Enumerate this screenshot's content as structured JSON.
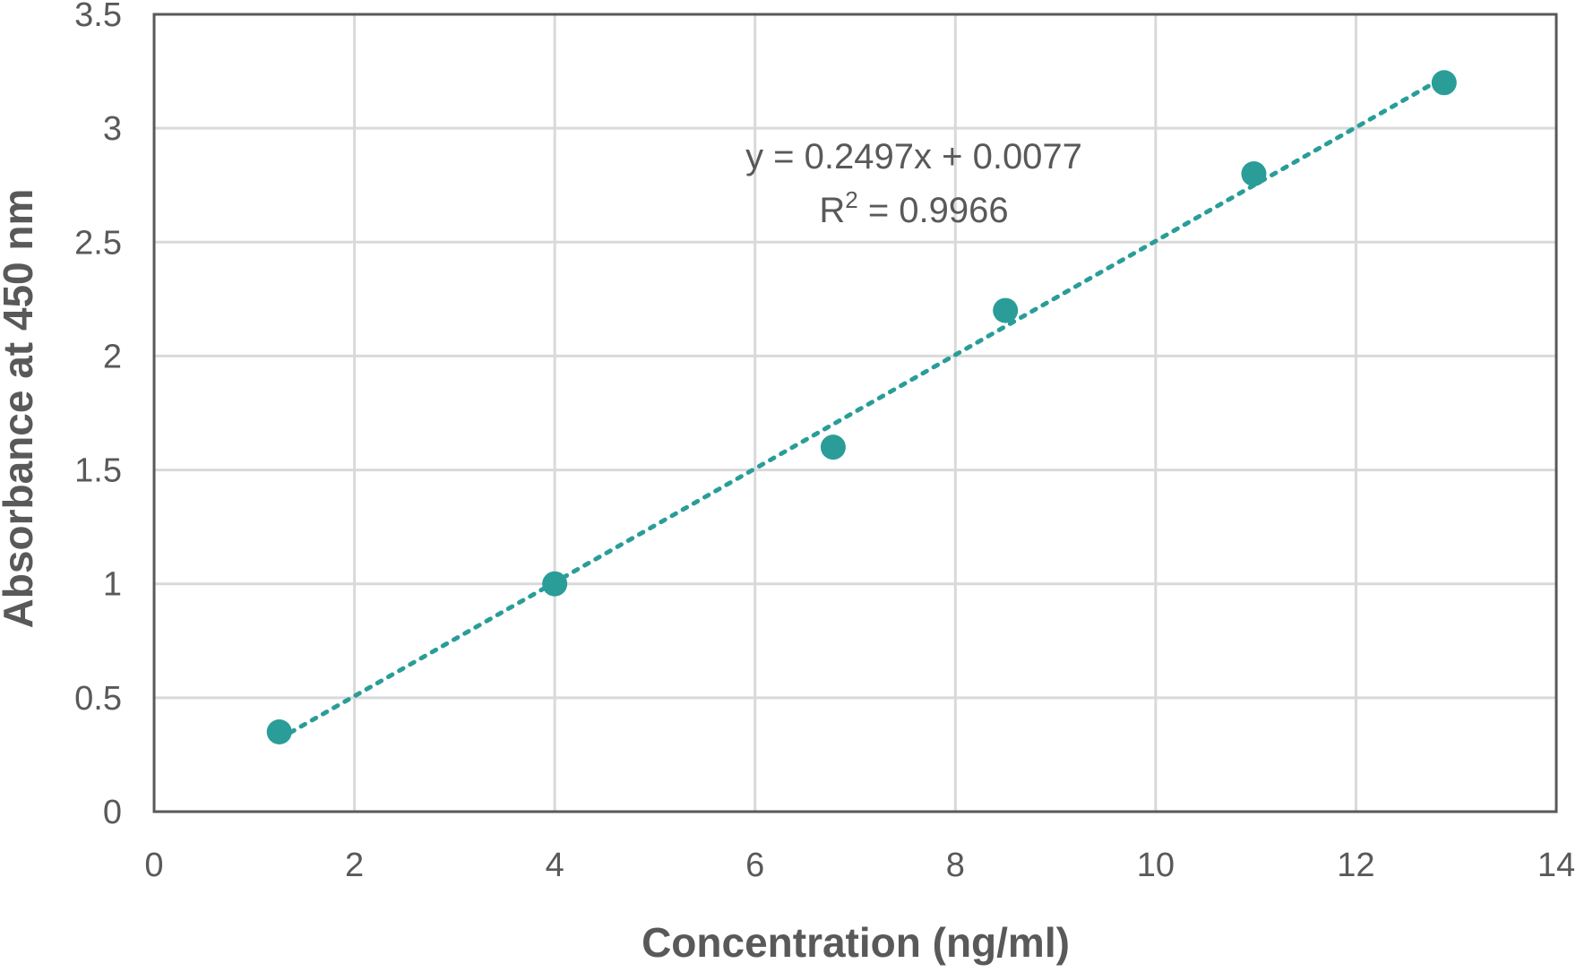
{
  "chart_data": {
    "type": "scatter",
    "title": "",
    "xlabel": "Concentration (ng/ml)",
    "ylabel": "Absorbance at 450 nm",
    "xlim": [
      0,
      14
    ],
    "ylim": [
      0,
      3.5
    ],
    "xticks": [
      0,
      2,
      4,
      6,
      8,
      10,
      12,
      14
    ],
    "yticks": [
      0,
      0.5,
      1,
      1.5,
      2,
      2.5,
      3,
      3.5
    ],
    "xtick_labels": [
      "0",
      "2",
      "4",
      "6",
      "8",
      "10",
      "12",
      "14"
    ],
    "ytick_labels": [
      "0",
      "0.5",
      "1",
      "1.5",
      "2",
      "2.5",
      "3",
      "3.5"
    ],
    "grid": true,
    "legend": "none",
    "series": [
      {
        "x": [
          1.25,
          4.0,
          6.78,
          8.5,
          10.98,
          12.88
        ],
        "y": [
          0.35,
          1.0,
          1.6,
          2.2,
          2.8,
          3.2
        ],
        "color": "#2a9d98",
        "marker": "circle"
      }
    ],
    "trendline": {
      "type": "linear",
      "style": "dotted",
      "slope": 0.2497,
      "intercept": 0.0077,
      "x_range": [
        1.25,
        12.88
      ],
      "color": "#2a9d98"
    },
    "annotations": {
      "equation": "y = 0.2497x + 0.0077",
      "r2_prefix": "R",
      "r2_exponent": "2",
      "r2_suffix": " = 0.9966"
    },
    "colors": {
      "axis": "#595959",
      "grid": "#d9d9d9",
      "text": "#595959"
    }
  }
}
